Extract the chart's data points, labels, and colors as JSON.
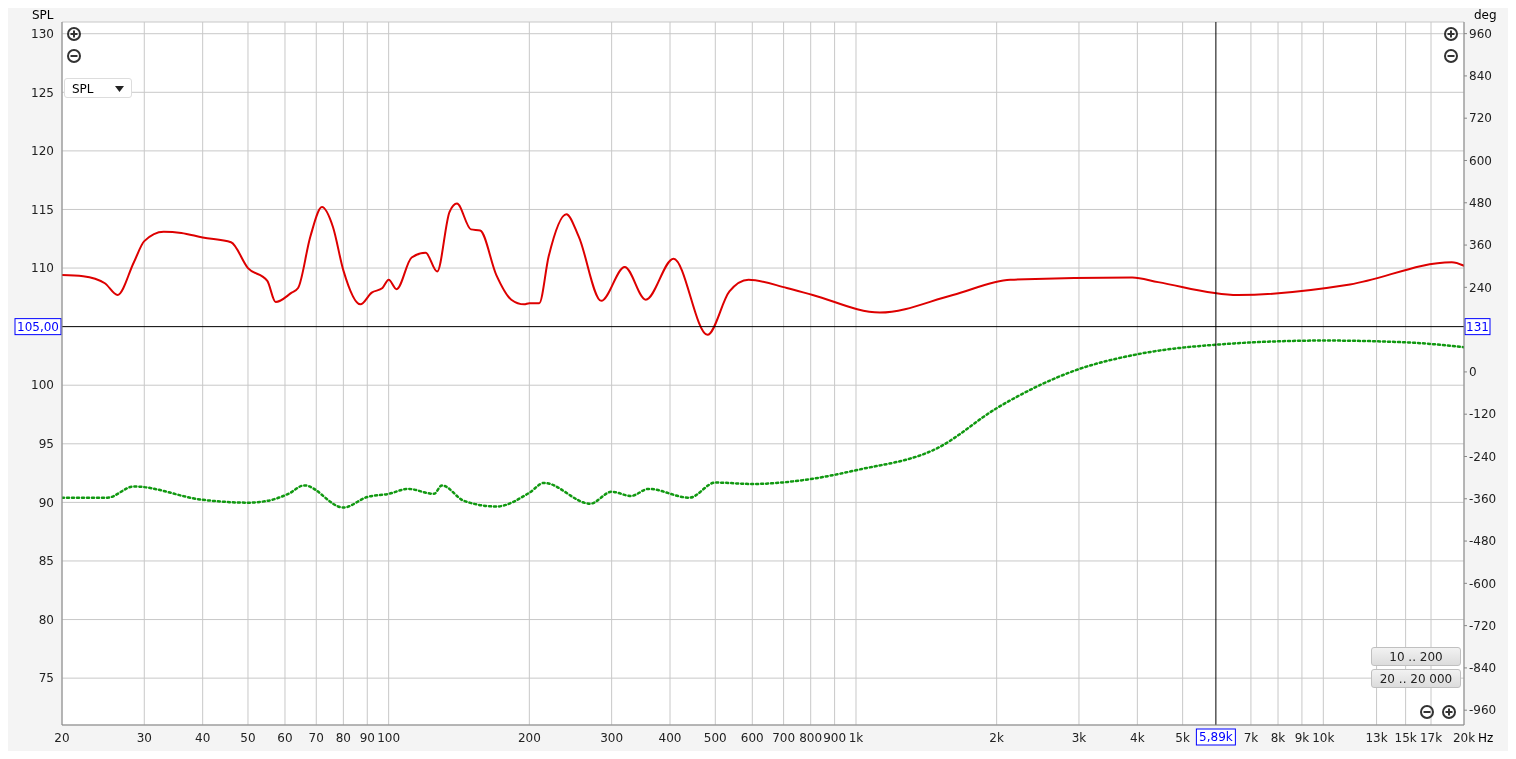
{
  "chart_data": {
    "type": "line",
    "ylabel": "SPL",
    "y2label": "deg",
    "xlabel": "Hz",
    "log": "x",
    "grid": true,
    "marker": "none",
    "xlim": [
      20,
      20000
    ],
    "ylim": [
      71,
      131
    ],
    "y2lim": [
      -1002,
      993
    ],
    "xticks": [
      20,
      30,
      40,
      50,
      60,
      70,
      80,
      90,
      100,
      200,
      300,
      400,
      500,
      600,
      700,
      800,
      900,
      {
        "value": 1000,
        "label": "1k"
      },
      {
        "value": 2000,
        "label": "2k"
      },
      {
        "value": 3000,
        "label": "3k"
      },
      {
        "value": 4000,
        "label": "4k"
      },
      {
        "value": 5000,
        "label": "5k"
      },
      {
        "value": 7000,
        "label": "7k"
      },
      {
        "value": 8000,
        "label": "8k"
      },
      {
        "value": 9000,
        "label": "9k"
      },
      {
        "value": 10000,
        "label": "10k"
      },
      {
        "value": 13000,
        "label": "13k"
      },
      {
        "value": 15000,
        "label": "15k"
      },
      {
        "value": 17000,
        "label": "17k"
      },
      {
        "value": 20000,
        "label": "20k"
      }
    ],
    "yticks": [
      75,
      80,
      85,
      90,
      95,
      100,
      110,
      115,
      120,
      125,
      130
    ],
    "y2ticks": [
      -960,
      -840,
      -720,
      -600,
      -480,
      -360,
      -240,
      -120,
      0,
      240,
      360,
      480,
      600,
      720,
      840,
      960
    ],
    "series": [
      {
        "color": "#dd0000",
        "line_style": "solid",
        "x": [
          20,
          22.2,
          24.7,
          26.3,
          28.5,
          30,
          33,
          36,
          40,
          46,
          50,
          55,
          57.3,
          62,
          64,
          68,
          72,
          76,
          80,
          87,
          92,
          97,
          100,
          104,
          112,
          120,
          127,
          135,
          140,
          150,
          157,
          170,
          183,
          195,
          200,
          210,
          220,
          240,
          255,
          285,
          320,
          355,
          407,
          481,
          536,
          589,
          711,
          808,
          1125,
          1612,
          2139,
          3900,
          4430,
          6570,
          11400,
          18830,
          20000
        ],
        "values": [
          109.4,
          109.3,
          108.7,
          107.7,
          110.5,
          112.3,
          113.1,
          113.0,
          112.6,
          112.2,
          110.0,
          108.9,
          107.1,
          107.9,
          108.3,
          112.7,
          115.2,
          113.5,
          109.8,
          106.9,
          107.9,
          108.3,
          109.0,
          108.2,
          110.9,
          111.3,
          109.7,
          114.8,
          115.5,
          113.3,
          113.2,
          109.4,
          107.3,
          106.9,
          107.0,
          107.0,
          111.0,
          114.6,
          112.7,
          107.2,
          110.1,
          107.3,
          110.8,
          104.3,
          108.0,
          109.0,
          108.3,
          107.7,
          106.2,
          107.7,
          109.0,
          109.2,
          108.8,
          107.7,
          108.6,
          110.5,
          110.2
        ]
      },
      {
        "color": "#119911",
        "axis": "y2",
        "line_style": "dotted",
        "x": [
          20,
          25,
          28.5,
          40,
          50,
          55,
          61,
          66,
          80,
          90,
          100,
          110,
          125,
          130,
          145,
          170,
          200,
          215,
          270,
          300,
          330,
          360,
          440,
          500,
          600,
          800,
          1000,
          1500,
          2000,
          3000,
          4000,
          6000,
          10000,
          15000,
          20000
        ],
        "values": [
          -357,
          -357,
          -325,
          -363,
          -371,
          -366,
          -346,
          -322,
          -385,
          -355,
          -346,
          -332,
          -346,
          -322,
          -366,
          -382,
          -343,
          -315,
          -374,
          -340,
          -352,
          -332,
          -357,
          -314,
          -318,
          -304,
          -279,
          -215,
          -103,
          8,
          50,
          78,
          89,
          84,
          70
        ]
      }
    ],
    "ref_lines": [
      {
        "axis": "x",
        "value": 5890,
        "label": "5,89k",
        "color": "#000000"
      },
      {
        "axis": "y",
        "value": 105,
        "label": "105,00",
        "color": "#000000"
      }
    ],
    "annotations": [
      "SPL",
      "10 .. 200",
      "20 .. 20 000",
      "131"
    ]
  }
}
